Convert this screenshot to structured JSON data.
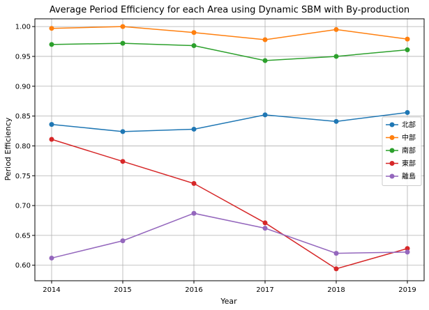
{
  "chart_data": {
    "type": "line",
    "title": "Average Period Efficiency for each Area using Dynamic SBM with By-production",
    "xlabel": "Year",
    "ylabel": "Period Efficiency",
    "x": [
      "2014",
      "2015",
      "2016",
      "2017",
      "2018",
      "2019"
    ],
    "ylim": [
      0.574,
      1.013
    ],
    "yticks": [
      "0.60",
      "0.65",
      "0.70",
      "0.75",
      "0.80",
      "0.85",
      "0.90",
      "0.95",
      "1.00"
    ],
    "grid": true,
    "legend_position": "right",
    "series": [
      {
        "name": "北部",
        "color": "#1f77b4",
        "values": [
          0.836,
          0.824,
          0.828,
          0.852,
          0.841,
          0.856
        ]
      },
      {
        "name": "中部",
        "color": "#ff7f0e",
        "values": [
          0.997,
          1.0,
          0.99,
          0.978,
          0.995,
          0.979
        ]
      },
      {
        "name": "南部",
        "color": "#2ca02c",
        "values": [
          0.97,
          0.972,
          0.968,
          0.943,
          0.95,
          0.961
        ]
      },
      {
        "name": "東部",
        "color": "#d62728",
        "values": [
          0.811,
          0.774,
          0.737,
          0.671,
          0.594,
          0.628
        ]
      },
      {
        "name": "離島",
        "color": "#9467bd",
        "values": [
          0.612,
          0.641,
          0.687,
          0.662,
          0.62,
          0.622
        ]
      }
    ]
  }
}
